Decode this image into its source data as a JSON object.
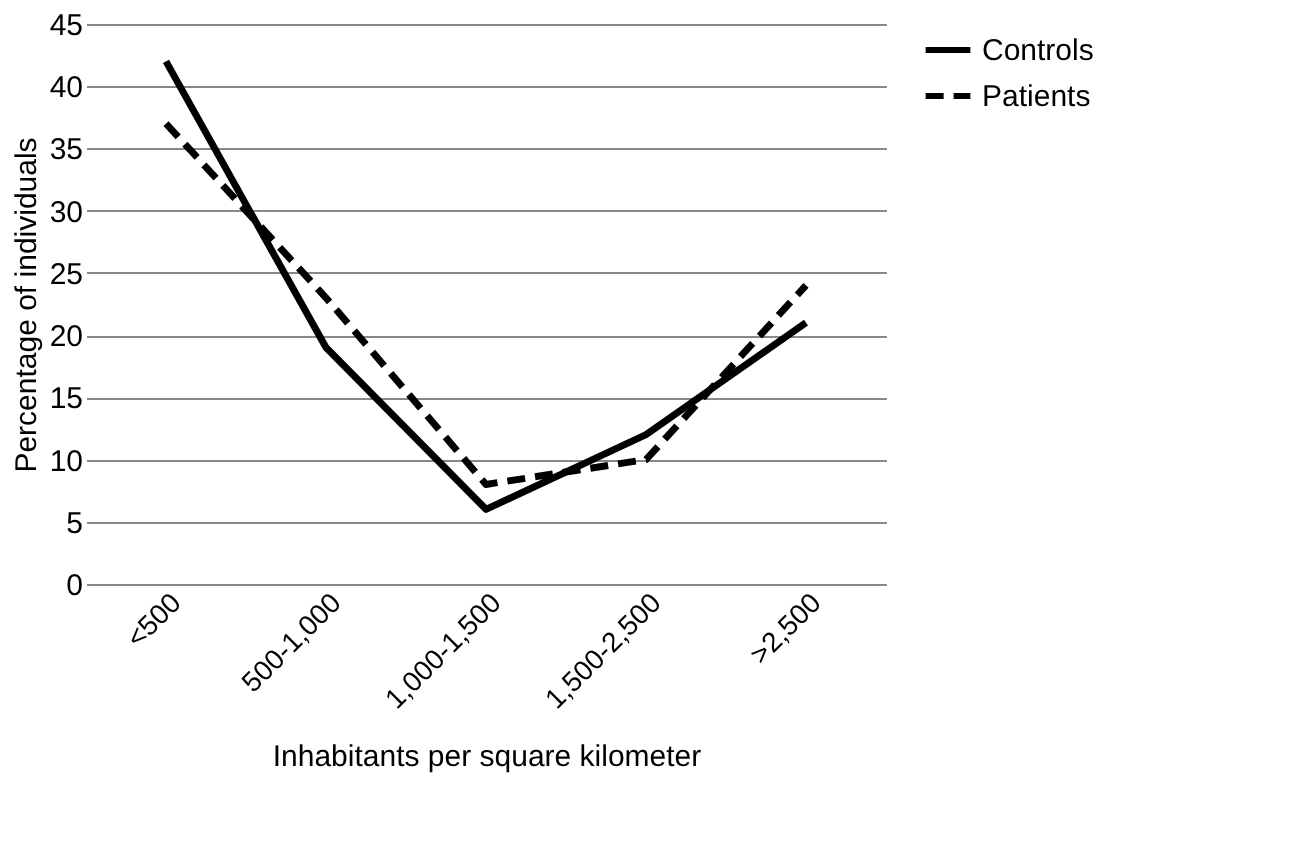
{
  "chart_data": {
    "type": "line",
    "xlabel": "Inhabitants per square kilometer",
    "ylabel": "Percentage of individuals",
    "categories": [
      "<500",
      "500-1,000",
      "1,000-1,500",
      "1,500-2,500",
      ">2,500"
    ],
    "series": [
      {
        "name": "Controls",
        "color": "#000000",
        "line_style": "solid",
        "values": [
          42,
          19,
          6,
          12,
          21
        ]
      },
      {
        "name": "Patients",
        "color": "#000000",
        "line_style": "dashed",
        "values": [
          37,
          23,
          8,
          10,
          24
        ]
      }
    ],
    "ylim": [
      0,
      45
    ],
    "yticks": [
      0,
      5,
      10,
      15,
      20,
      25,
      30,
      35,
      40,
      45
    ],
    "grid": "y",
    "legend": "right",
    "marker": "none"
  }
}
